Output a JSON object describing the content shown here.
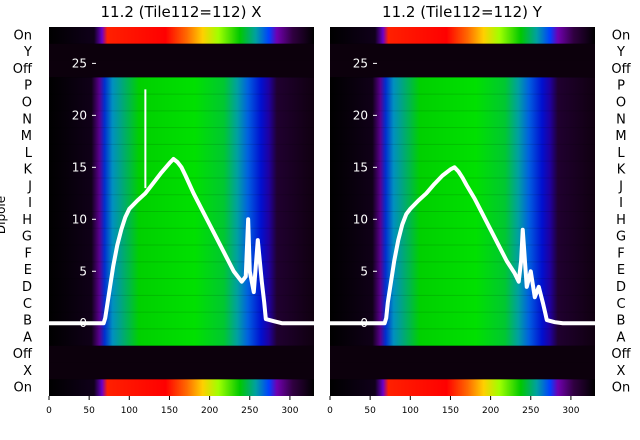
{
  "chart_data": [
    {
      "type": "heatmap",
      "title": "11.2 (Tile112=112) X",
      "xlabel": "",
      "ylabel": "Dipole",
      "xlim": [
        0,
        330
      ],
      "x_ticks": [
        0,
        50,
        100,
        150,
        200,
        250,
        300
      ],
      "y_ticks": [
        0,
        5,
        10,
        15,
        20,
        25
      ],
      "ylim": [
        -7,
        28.5
      ],
      "row_labels": [
        "On",
        "Y",
        "Off",
        "P",
        "O",
        "N",
        "M",
        "L",
        "K",
        "J",
        "I",
        "H",
        "G",
        "F",
        "E",
        "D",
        "C",
        "B",
        "A",
        "Off",
        "X",
        "On"
      ],
      "overlay_series": {
        "name": "",
        "x": [
          0,
          68,
          70,
          72,
          76,
          80,
          85,
          90,
          95,
          100,
          110,
          120,
          130,
          140,
          150,
          155,
          160,
          165,
          170,
          180,
          190,
          200,
          210,
          220,
          230,
          240,
          245,
          248,
          250,
          255,
          260,
          265,
          268,
          270,
          280,
          290,
          300,
          310,
          320,
          330
        ],
        "y": [
          0,
          0,
          0.5,
          1.5,
          3.5,
          5.5,
          7.5,
          9,
          10.2,
          11,
          11.8,
          12.5,
          13.5,
          14.5,
          15.4,
          15.8,
          15.5,
          15,
          14.2,
          12.5,
          11,
          9.5,
          8,
          6.5,
          5,
          4,
          4.5,
          10,
          5,
          3,
          8,
          4,
          2,
          0.4,
          0.2,
          0,
          0,
          0,
          0,
          0
        ]
      },
      "spike": {
        "x": 120,
        "y_from": 13,
        "y_to": 22.5
      }
    },
    {
      "type": "heatmap",
      "title": "11.2 (Tile112=112) Y",
      "xlabel": "",
      "ylabel": "",
      "xlim": [
        0,
        330
      ],
      "x_ticks": [
        0,
        50,
        100,
        150,
        200,
        250,
        300
      ],
      "y_ticks": [
        0,
        5,
        10,
        15,
        20,
        25
      ],
      "ylim": [
        -7,
        28.5
      ],
      "row_labels": [
        "On",
        "Y",
        "Off",
        "P",
        "O",
        "N",
        "M",
        "L",
        "K",
        "J",
        "I",
        "H",
        "G",
        "F",
        "E",
        "D",
        "C",
        "B",
        "A",
        "Off",
        "X",
        "On"
      ],
      "overlay_series": {
        "name": "",
        "x": [
          0,
          68,
          70,
          72,
          76,
          80,
          85,
          90,
          95,
          100,
          110,
          120,
          130,
          140,
          150,
          155,
          160,
          165,
          170,
          180,
          190,
          200,
          210,
          220,
          230,
          235,
          238,
          240,
          245,
          250,
          255,
          260,
          265,
          268,
          270,
          280,
          290,
          300,
          310,
          320,
          330
        ],
        "y": [
          0,
          0,
          0.5,
          2,
          4,
          6,
          8,
          9.5,
          10.5,
          11,
          11.8,
          12.5,
          13.4,
          14.2,
          14.8,
          15,
          14.6,
          14,
          13.3,
          12,
          10.5,
          9,
          7.5,
          6,
          4.8,
          4,
          6,
          9,
          3.5,
          5,
          2.5,
          3.5,
          2,
          1,
          0.3,
          0.1,
          0,
          0,
          0,
          0,
          0
        ]
      }
    }
  ]
}
